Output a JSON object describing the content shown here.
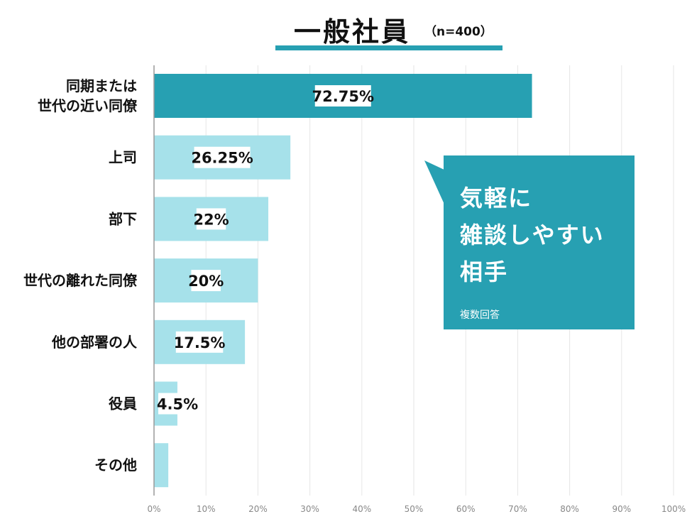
{
  "title": {
    "main": "一般社員",
    "sub": "（n=400）"
  },
  "callout": {
    "lines": [
      "気軽に",
      "雑談しやすい",
      "相手"
    ],
    "note": "複数回答"
  },
  "colors": {
    "primary": "#27a0b2",
    "light": "#a6e1ea",
    "grid": "#e6e6e6",
    "axis": "#999999"
  },
  "chart_data": {
    "type": "bar",
    "orientation": "horizontal",
    "categories": [
      "同期または\n世代の近い同僚",
      "上司",
      "部下",
      "世代の離れた同僚",
      "他の部署の人",
      "役員",
      "その他"
    ],
    "values": [
      72.75,
      26.25,
      22,
      20,
      17.5,
      4.5,
      2.75
    ],
    "labels": [
      "72.75%",
      "26.25%",
      "22%",
      "20%",
      "17.5%",
      "4.5%",
      ""
    ],
    "highlight_index": 0,
    "xlim": [
      0,
      100
    ],
    "xticks": [
      "0%",
      "10%",
      "20%",
      "30%",
      "40%",
      "50%",
      "60%",
      "70%",
      "80%",
      "90%",
      "100%"
    ],
    "grid": true
  }
}
